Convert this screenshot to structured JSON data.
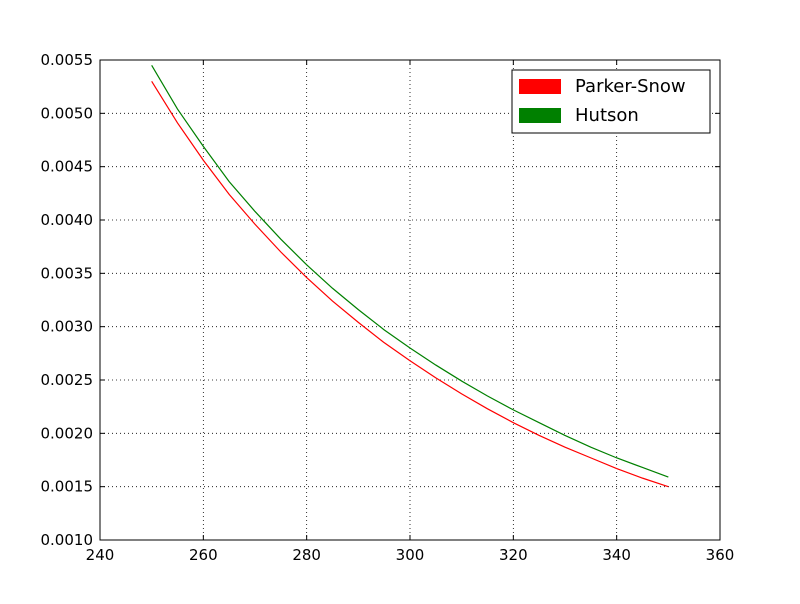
{
  "chart_data": {
    "type": "line",
    "title": "",
    "xlabel": "",
    "ylabel": "",
    "xlim": [
      240,
      360
    ],
    "ylim": [
      0.001,
      0.0055
    ],
    "grid": true,
    "legend_position": "top-right",
    "x_ticks": [
      240,
      260,
      280,
      300,
      320,
      340,
      360
    ],
    "x_tick_labels": [
      "240",
      "260",
      "280",
      "300",
      "320",
      "340",
      "360"
    ],
    "y_ticks": [
      0.001,
      0.0015,
      0.002,
      0.0025,
      0.003,
      0.0035,
      0.004,
      0.0045,
      0.005,
      0.0055
    ],
    "y_tick_labels": [
      "0.0010",
      "0.0015",
      "0.0020",
      "0.0025",
      "0.0030",
      "0.0035",
      "0.0040",
      "0.0045",
      "0.0050",
      "0.0055"
    ],
    "x": [
      250,
      255,
      260,
      265,
      270,
      275,
      280,
      285,
      290,
      295,
      300,
      305,
      310,
      315,
      320,
      325,
      330,
      335,
      340,
      345,
      350
    ],
    "series": [
      {
        "name": "Parker-Snow",
        "color": "#ff0000",
        "values": [
          0.0053,
          0.00491,
          0.00456,
          0.00424,
          0.00396,
          0.0037,
          0.00346,
          0.00324,
          0.00304,
          0.00285,
          0.00268,
          0.00252,
          0.00237,
          0.00223,
          0.0021,
          0.00198,
          0.00187,
          0.00177,
          0.00167,
          0.00158,
          0.0015
        ]
      },
      {
        "name": "Hutson",
        "color": "#008000",
        "values": [
          0.00545,
          0.00504,
          0.00469,
          0.00436,
          0.00408,
          0.00382,
          0.00358,
          0.00336,
          0.00316,
          0.00297,
          0.0028,
          0.00264,
          0.00249,
          0.00235,
          0.00222,
          0.0021,
          0.00198,
          0.00187,
          0.00177,
          0.00168,
          0.00159
        ]
      }
    ]
  }
}
